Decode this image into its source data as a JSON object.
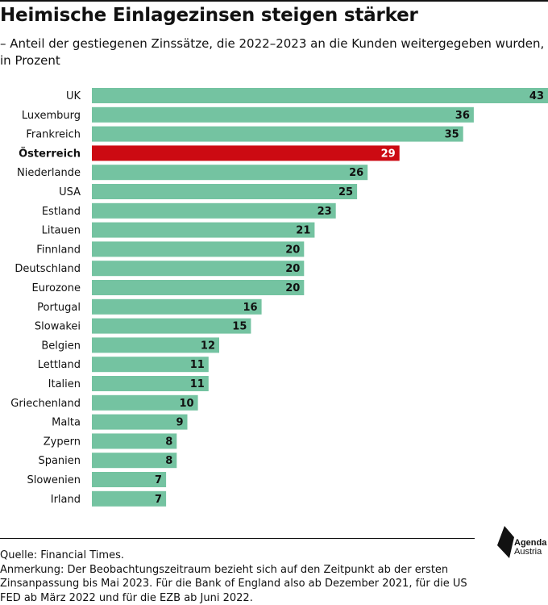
{
  "header": {
    "title": "Heimische Einlagezinsen steigen stärker",
    "subtitle": "– Anteil der gestiegenen Zinssätze, die 2022–2023 an die Kunden weitergegeben wurden, in Prozent"
  },
  "colors": {
    "bar": "#74c3a1",
    "highlight": "#cc0a12",
    "text": "#111111",
    "label_on_highlight": "#ffffff"
  },
  "chart_data": {
    "type": "bar",
    "orientation": "horizontal",
    "title": "Heimische Einlagezinsen steigen stärker",
    "subtitle": "– Anteil der gestiegenen Zinssätze, die 2022–2023 an die Kunden weitergegeben wurden, in Prozent",
    "categories": [
      "UK",
      "Luxemburg",
      "Frankreich",
      "Österreich",
      "Niederlande",
      "USA",
      "Estland",
      "Litauen",
      "Finnland",
      "Deutschland",
      "Eurozone",
      "Portugal",
      "Slowakei",
      "Belgien",
      "Lettland",
      "Italien",
      "Griechenland",
      "Malta",
      "Zypern",
      "Spanien",
      "Slowenien",
      "Irland"
    ],
    "values": [
      43,
      36,
      35,
      29,
      26,
      25,
      23,
      21,
      20,
      20,
      20,
      16,
      15,
      12,
      11,
      11,
      10,
      9,
      8,
      8,
      7,
      7
    ],
    "highlight": "Österreich",
    "xlim": [
      0,
      43
    ],
    "grid": false,
    "data_labels": true
  },
  "footer": {
    "source": "Quelle: Financial Times.",
    "note": "Anmerkung: Der Beobachtungszeitraum bezieht sich auf den Zeitpunkt ab der ersten Zinsanpassung bis Mai 2023.  Für die Bank of England also ab Dezember 2021, für die US FED ab März 2022 und für die EZB ab Juni 2022."
  },
  "logo": {
    "line1": "Agenda",
    "line2": "Austria",
    "icon": "agenda-austria-logo-icon"
  }
}
